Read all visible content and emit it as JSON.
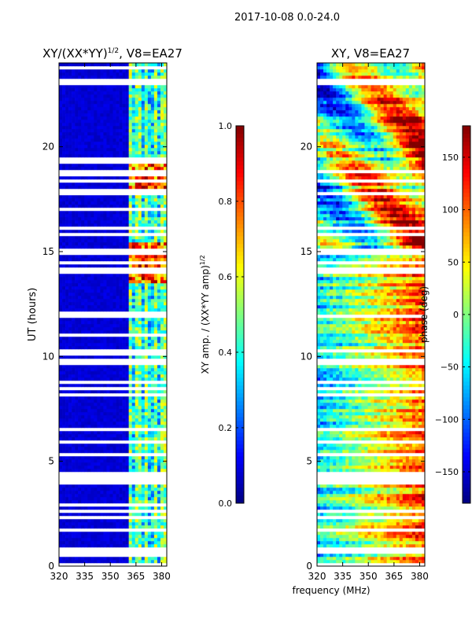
{
  "figure": {
    "suptitle": "2017-10-08 0.0-24.0",
    "xlabel": "frequency (MHz)"
  },
  "chart_data": [
    {
      "type": "heatmap",
      "title": "XY/(XX*YY)^1/2, V8=EA27",
      "title_main": "XY/(XX*YY)",
      "title_sup": "1/2",
      "title_tail": ", V8=EA27",
      "ylabel": "UT (hours)",
      "x_ticks": [
        320,
        335,
        350,
        365,
        380
      ],
      "xlim": [
        320,
        383
      ],
      "y_ticks": [
        0,
        5,
        10,
        15,
        20
      ],
      "ylim": [
        0,
        24
      ],
      "colorbar": {
        "label": "XY amp. / (XX*YY amp)^1/2",
        "label_main": "XY amp. / (XX*YY amp)",
        "label_sup": "1/2",
        "ticks": [
          "0.0",
          "0.2",
          "0.4",
          "0.6",
          "0.8",
          "1.0"
        ],
        "tick_values": [
          0.0,
          0.2,
          0.4,
          0.6,
          0.8,
          1.0
        ],
        "range": [
          0.0,
          1.0
        ],
        "colormap": "jet"
      },
      "active_band_mhz": [
        360,
        380
      ],
      "high_band_hours": [
        [
          13.5,
          15.5
        ],
        [
          18.0,
          19.2
        ]
      ]
    },
    {
      "type": "heatmap",
      "title": "XY, V8=EA27",
      "x_ticks": [
        320,
        335,
        350,
        365,
        380
      ],
      "xlim": [
        320,
        383
      ],
      "y_ticks": [
        0,
        5,
        10,
        15,
        20
      ],
      "ylim": [
        0,
        24
      ],
      "colorbar": {
        "label": "phase (deg)",
        "ticks": [
          "150",
          "100",
          "50",
          "0",
          "−50",
          "−100",
          "−150"
        ],
        "tick_values": [
          150,
          100,
          50,
          0,
          -50,
          -100,
          -150
        ],
        "range": [
          -180,
          180
        ],
        "colormap": "jet"
      }
    }
  ],
  "colors": {
    "background": "#ffffff",
    "axis": "#000000",
    "gap": "#ffffff"
  }
}
